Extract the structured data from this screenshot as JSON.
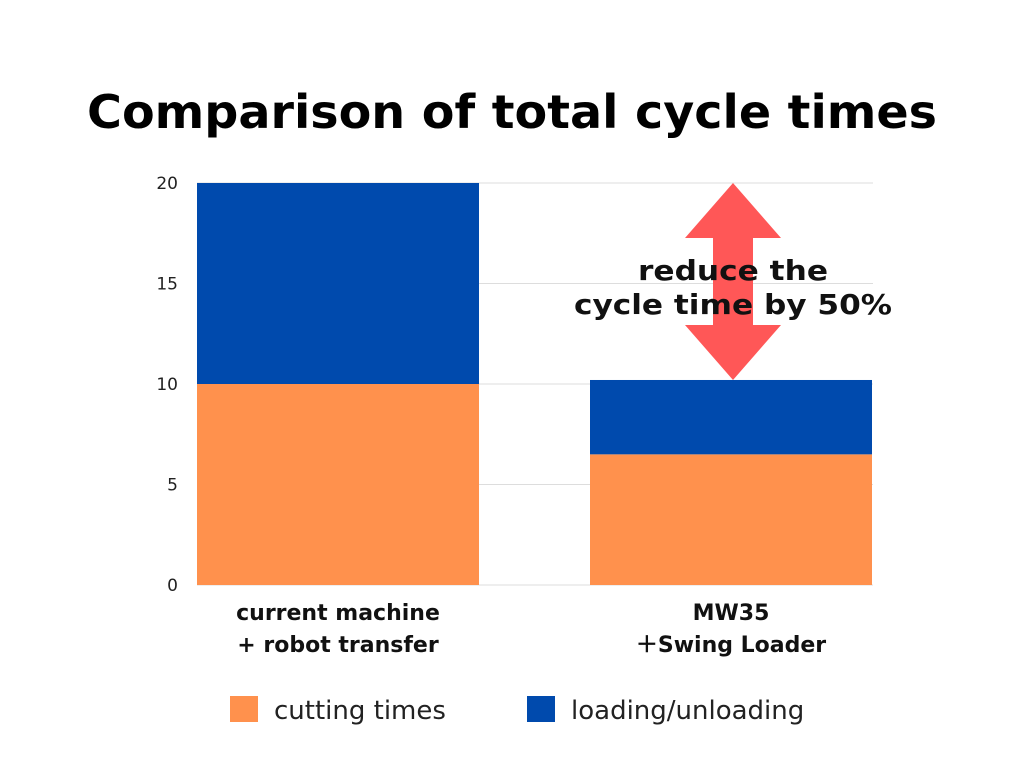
{
  "chart_data": {
    "type": "bar",
    "stacked": true,
    "title": "Comparison of total cycle times",
    "categories": [
      [
        "current machine",
        "+ robot transfer"
      ],
      [
        "MW35",
        "＋Swing Loader"
      ]
    ],
    "series": [
      {
        "name": "cutting times",
        "values": [
          10,
          6.5
        ],
        "color": "#FF914D"
      },
      {
        "name": "loading/unloading",
        "values": [
          10,
          3.7
        ],
        "color": "#004AAD"
      }
    ],
    "ylim": [
      0,
      20
    ],
    "yticks": [
      0,
      5,
      10,
      15,
      20
    ],
    "grid": true,
    "legend": "bottom",
    "annotation": {
      "lines": [
        "reduce the",
        "cycle time by 50%"
      ],
      "arrow": "double",
      "arrow_color": "#FF5757",
      "from_value": 10.2,
      "to_value": 20
    }
  }
}
